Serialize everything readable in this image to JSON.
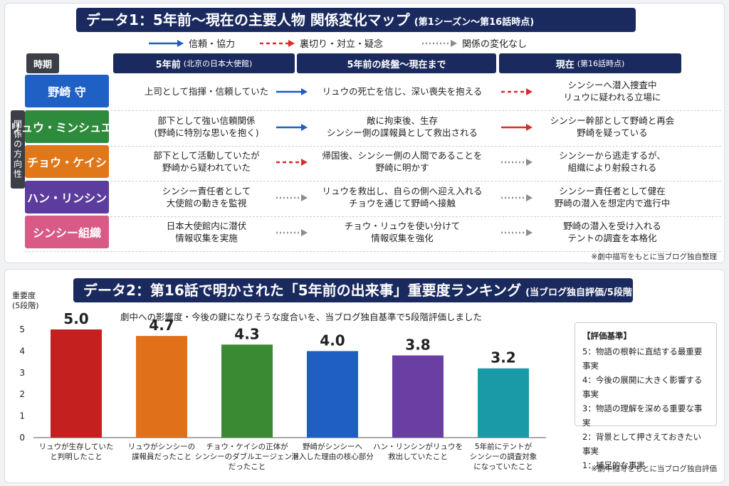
{
  "panel1": {
    "title_main": "データ1：5年前〜現在の主要人物 関係変化マップ",
    "title_sub": "(第1シーズン〜第16話時点)",
    "legend": [
      {
        "label": "信頼・協力",
        "color": "#1e5bc6",
        "style": "solid"
      },
      {
        "label": "裏切り・対立・疑念",
        "color": "#d92b2b",
        "style": "dashed"
      },
      {
        "label": "関係の変化なし",
        "color": "#8a8d94",
        "style": "dotted"
      }
    ],
    "header_period": "時期",
    "columns": [
      {
        "main": "5年前",
        "sub": "(北京の日本大使館)"
      },
      {
        "main": "5年前の終盤〜現在まで",
        "sub": ""
      },
      {
        "main": "現在",
        "sub": "(第16話時点)"
      }
    ],
    "side_label": "関係の方向性",
    "rows": [
      {
        "name": "野崎 守",
        "color": "#1f60c4",
        "c1": "上司として指揮・信頼していた",
        "c2": "リュウの死亡を信じ、深い喪失を抱える",
        "c3": "シンシーへ潜入捜査中\nリュウに疑われる立場に",
        "a1": "solid-blue",
        "a2": "dashed-red"
      },
      {
        "name": "リュウ・ミンシュエン",
        "color": "#2e8b3d",
        "c1": "部下として強い信頼関係\n(野崎に特別な思いを抱く)",
        "c2": "敵に拘束後、生存\nシンシー側の諜報員として救出される",
        "c3": "シンシー幹部として野崎と再会\n野崎を疑っている",
        "a1": "solid-blue",
        "a2": "solid-red"
      },
      {
        "name": "チョウ・ケイシ",
        "color": "#e0781a",
        "c1": "部下として活動していたが\n野崎から疑われていた",
        "c2": "帰国後、シンシー側の人間であることを\n野崎に明かす",
        "c3": "シンシーから逃走するが、\n組織により射殺される",
        "a1": "dashed-red",
        "a2": "dotted-gray"
      },
      {
        "name": "ハン・リンシン",
        "color": "#5c3c9c",
        "c1": "シンシー責任者として\n大使館の動きを監視",
        "c2": "リュウを救出し、自らの側へ迎え入れる\nチョウを通じて野崎へ接触",
        "c3": "シンシー責任者として健在\n野崎の潜入を想定内で進行中",
        "a1": "dotted-gray",
        "a2": "dotted-gray"
      },
      {
        "name": "シンシー組織",
        "color": "#d95a86",
        "c1": "日本大使館内に潜伏\n情報収集を実施",
        "c2": "チョウ・リュウを使い分けて\n情報収集を強化",
        "c3": "野崎の潜入を受け入れる\nテントの調査を本格化",
        "a1": "dotted-gray",
        "a2": "dotted-gray"
      }
    ],
    "note": "※劇中描写をもとに当ブログ独自整理"
  },
  "panel2": {
    "title_main": "データ2：第16話で明かされた「5年前の出来事」重要度ランキング",
    "title_sub": "(当ブログ独自評価/5段階)",
    "description": "劇中への影響度・今後の鍵になりそうな度合いを、当ブログ独自基準で5段階評価しました",
    "criteria_title": "【評価基準】",
    "criteria": [
      "5：物語の根幹に直結する最重要事実",
      "4：今後の展開に大きく影響する事実",
      "3：物語の理解を深める重要な事実",
      "2：背景として押さえておきたい事実",
      "1：補足的な事実"
    ],
    "note": "※劇中描写をもとに当ブログ独自評価"
  },
  "chart_data": {
    "type": "bar",
    "ylabel": "重要度\n(5段階)",
    "ylim": [
      0,
      5
    ],
    "yticks": [
      0,
      1,
      2,
      3,
      4,
      5
    ],
    "grid": false,
    "categories": [
      "リュウが生存していた\nと判明したこと",
      "リュウがシンシーの\n諜報員だったこと",
      "チョウ・ケイシの正体が\nシンシーのダブルエージェント\nだったこと",
      "野崎がシンシーへ\n潜入した理由の核心部分",
      "ハン・リンシンがリュウを\n救出していたこと",
      "5年前にテントが\nシンシーの調査対象\nになっていたこと"
    ],
    "values": [
      5.0,
      4.7,
      4.3,
      4.0,
      3.8,
      3.2
    ],
    "value_labels": [
      "5.0",
      "4.7",
      "4.3",
      "4.0",
      "3.8",
      "3.2"
    ],
    "colors": [
      "#c4201f",
      "#e0701a",
      "#3a8a34",
      "#1f5fc4",
      "#6a3fa3",
      "#1a9aa6"
    ]
  }
}
